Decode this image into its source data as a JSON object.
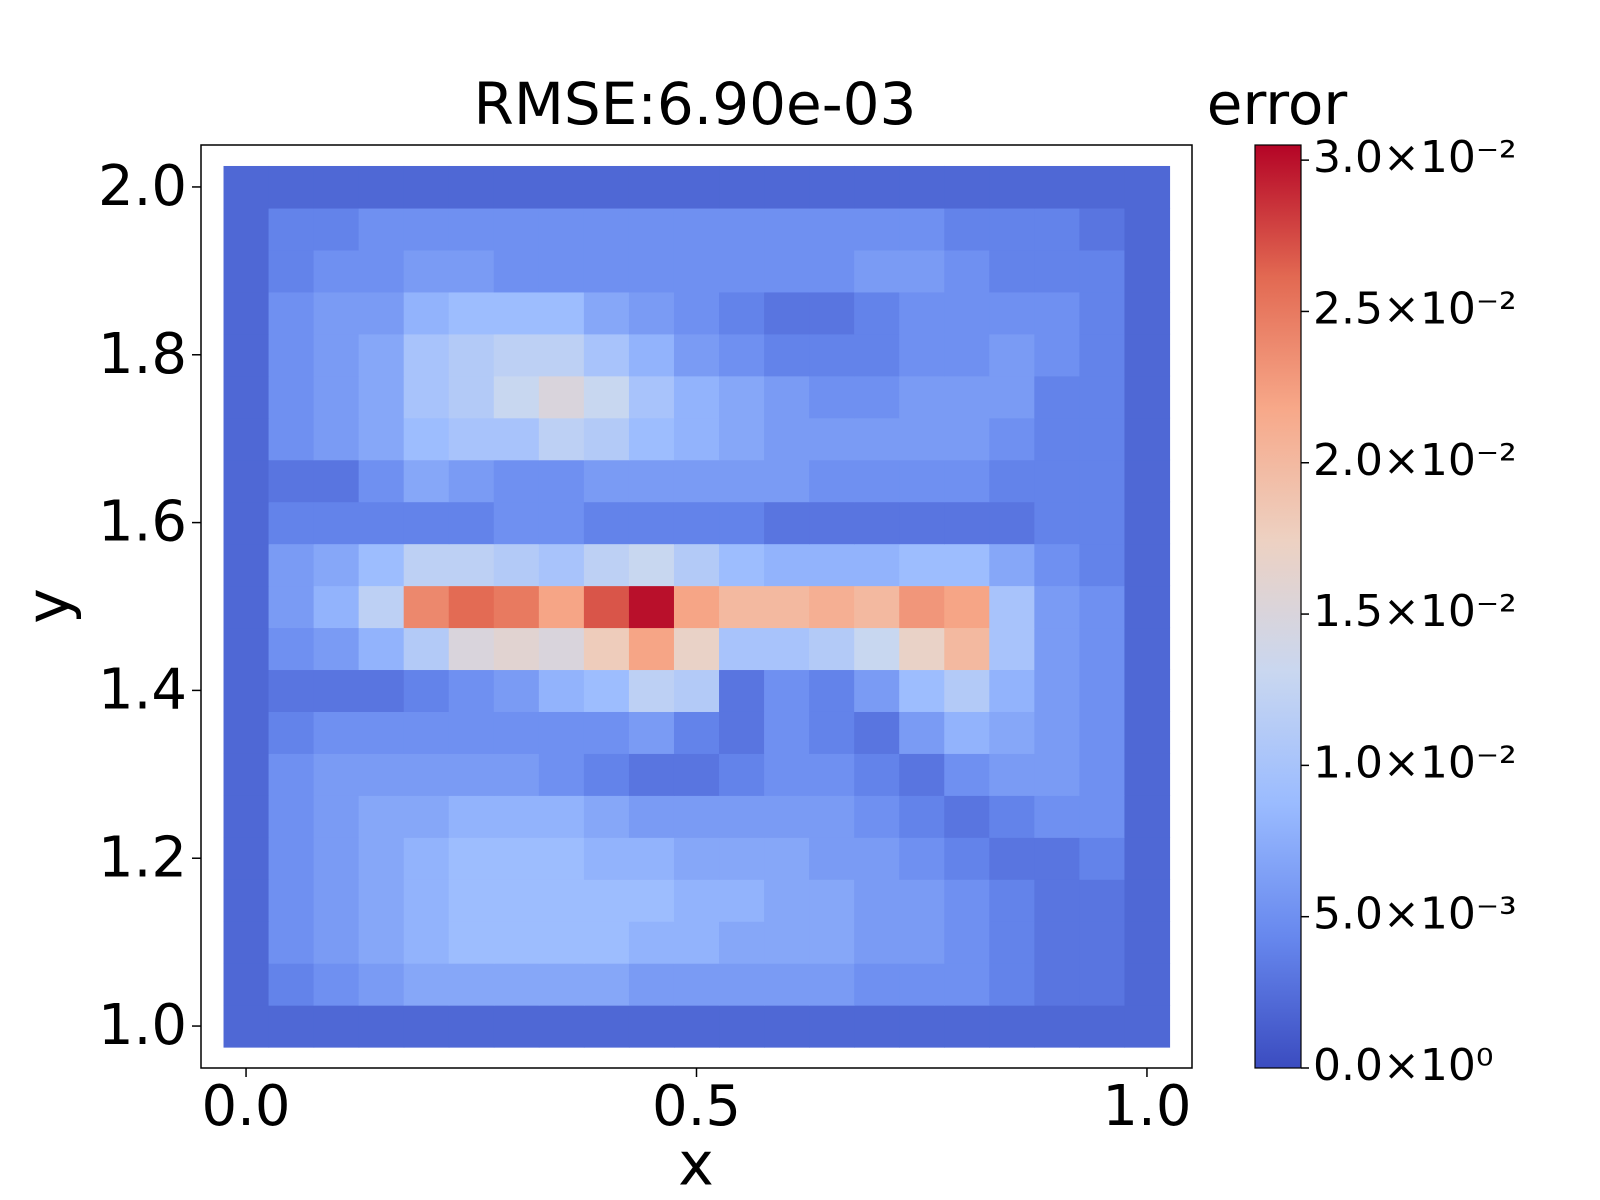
{
  "chart_data": {
    "type": "heatmap",
    "title": "RMSE:6.90e-03",
    "xlabel": "x",
    "ylabel": "y",
    "colorbar_label": "error",
    "x": [
      0,
      0.05,
      0.1,
      0.15,
      0.2,
      0.25,
      0.3,
      0.35,
      0.4,
      0.45,
      0.5,
      0.55,
      0.6,
      0.65,
      0.7,
      0.75,
      0.8,
      0.85,
      0.9,
      0.95,
      1
    ],
    "y": [
      1,
      1.05,
      1.1,
      1.15,
      1.2,
      1.25,
      1.3,
      1.35,
      1.4,
      1.45,
      1.5,
      1.55,
      1.6,
      1.65,
      1.7,
      1.75,
      1.8,
      1.85,
      1.9,
      1.95,
      2
    ],
    "z": [
      [
        0.002,
        0.002,
        0.002,
        0.002,
        0.002,
        0.002,
        0.002,
        0.002,
        0.002,
        0.002,
        0.002,
        0.002,
        0.002,
        0.002,
        0.002,
        0.002,
        0.002,
        0.002,
        0.002,
        0.002,
        0.002
      ],
      [
        0.002,
        0.004,
        0.005,
        0.006,
        0.007,
        0.007,
        0.007,
        0.007,
        0.007,
        0.006,
        0.006,
        0.006,
        0.006,
        0.006,
        0.005,
        0.005,
        0.005,
        0.004,
        0.003,
        0.003,
        0.002
      ],
      [
        0.002,
        0.005,
        0.006,
        0.007,
        0.008,
        0.009,
        0.009,
        0.009,
        0.009,
        0.008,
        0.008,
        0.007,
        0.007,
        0.007,
        0.006,
        0.006,
        0.005,
        0.004,
        0.003,
        0.003,
        0.002
      ],
      [
        0.002,
        0.005,
        0.006,
        0.007,
        0.008,
        0.009,
        0.009,
        0.009,
        0.009,
        0.009,
        0.008,
        0.008,
        0.007,
        0.007,
        0.006,
        0.006,
        0.005,
        0.004,
        0.003,
        0.003,
        0.002
      ],
      [
        0.002,
        0.005,
        0.006,
        0.007,
        0.008,
        0.009,
        0.009,
        0.009,
        0.008,
        0.008,
        0.007,
        0.007,
        0.007,
        0.006,
        0.006,
        0.005,
        0.004,
        0.003,
        0.003,
        0.004,
        0.002
      ],
      [
        0.002,
        0.005,
        0.006,
        0.007,
        0.007,
        0.008,
        0.008,
        0.008,
        0.007,
        0.006,
        0.006,
        0.006,
        0.006,
        0.006,
        0.005,
        0.004,
        0.003,
        0.004,
        0.005,
        0.005,
        0.002
      ],
      [
        0.002,
        0.005,
        0.006,
        0.006,
        0.006,
        0.006,
        0.006,
        0.005,
        0.004,
        0.003,
        0.003,
        0.004,
        0.005,
        0.005,
        0.004,
        0.003,
        0.005,
        0.006,
        0.006,
        0.005,
        0.002
      ],
      [
        0.002,
        0.004,
        0.005,
        0.005,
        0.005,
        0.005,
        0.005,
        0.005,
        0.005,
        0.006,
        0.004,
        0.003,
        0.005,
        0.004,
        0.003,
        0.006,
        0.008,
        0.007,
        0.006,
        0.005,
        0.002
      ],
      [
        0.002,
        0.003,
        0.003,
        0.003,
        0.004,
        0.005,
        0.006,
        0.008,
        0.009,
        0.012,
        0.011,
        0.003,
        0.005,
        0.004,
        0.006,
        0.009,
        0.011,
        0.008,
        0.006,
        0.005,
        0.002
      ],
      [
        0.002,
        0.005,
        0.006,
        0.008,
        0.011,
        0.015,
        0.016,
        0.015,
        0.018,
        0.022,
        0.017,
        0.01,
        0.01,
        0.011,
        0.013,
        0.017,
        0.02,
        0.01,
        0.006,
        0.005,
        0.002
      ],
      [
        0.002,
        0.006,
        0.008,
        0.012,
        0.024,
        0.026,
        0.025,
        0.022,
        0.027,
        0.03,
        0.022,
        0.02,
        0.02,
        0.021,
        0.02,
        0.023,
        0.022,
        0.01,
        0.006,
        0.005,
        0.002
      ],
      [
        0.002,
        0.006,
        0.007,
        0.009,
        0.012,
        0.012,
        0.011,
        0.01,
        0.012,
        0.013,
        0.011,
        0.009,
        0.008,
        0.008,
        0.008,
        0.009,
        0.009,
        0.007,
        0.005,
        0.004,
        0.002
      ],
      [
        0.002,
        0.004,
        0.004,
        0.004,
        0.004,
        0.004,
        0.005,
        0.005,
        0.004,
        0.004,
        0.004,
        0.004,
        0.003,
        0.003,
        0.003,
        0.003,
        0.003,
        0.003,
        0.004,
        0.004,
        0.002
      ],
      [
        0.002,
        0.003,
        0.003,
        0.005,
        0.007,
        0.006,
        0.005,
        0.005,
        0.006,
        0.006,
        0.006,
        0.006,
        0.006,
        0.005,
        0.005,
        0.005,
        0.005,
        0.004,
        0.004,
        0.004,
        0.002
      ],
      [
        0.002,
        0.005,
        0.006,
        0.007,
        0.009,
        0.01,
        0.01,
        0.012,
        0.011,
        0.009,
        0.008,
        0.007,
        0.006,
        0.006,
        0.006,
        0.006,
        0.006,
        0.005,
        0.004,
        0.004,
        0.002
      ],
      [
        0.002,
        0.005,
        0.006,
        0.007,
        0.01,
        0.011,
        0.013,
        0.015,
        0.013,
        0.01,
        0.008,
        0.007,
        0.006,
        0.005,
        0.005,
        0.006,
        0.006,
        0.006,
        0.004,
        0.004,
        0.002
      ],
      [
        0.002,
        0.005,
        0.006,
        0.007,
        0.01,
        0.011,
        0.012,
        0.012,
        0.01,
        0.008,
        0.006,
        0.005,
        0.004,
        0.004,
        0.004,
        0.005,
        0.005,
        0.006,
        0.005,
        0.004,
        0.002
      ],
      [
        0.002,
        0.005,
        0.006,
        0.006,
        0.008,
        0.009,
        0.009,
        0.009,
        0.007,
        0.006,
        0.005,
        0.004,
        0.003,
        0.003,
        0.004,
        0.005,
        0.005,
        0.005,
        0.005,
        0.004,
        0.002
      ],
      [
        0.002,
        0.004,
        0.005,
        0.005,
        0.006,
        0.006,
        0.005,
        0.005,
        0.005,
        0.005,
        0.005,
        0.005,
        0.005,
        0.005,
        0.006,
        0.006,
        0.005,
        0.004,
        0.004,
        0.004,
        0.002
      ],
      [
        0.002,
        0.004,
        0.004,
        0.005,
        0.005,
        0.005,
        0.005,
        0.005,
        0.005,
        0.005,
        0.005,
        0.005,
        0.005,
        0.005,
        0.005,
        0.005,
        0.004,
        0.004,
        0.004,
        0.003,
        0.002
      ],
      [
        0.002,
        0.002,
        0.002,
        0.002,
        0.002,
        0.002,
        0.002,
        0.002,
        0.002,
        0.002,
        0.002,
        0.002,
        0.002,
        0.002,
        0.002,
        0.002,
        0.002,
        0.002,
        0.002,
        0.002,
        0.002
      ]
    ],
    "xlim": [
      -0.05,
      1.05
    ],
    "ylim": [
      0.95,
      2.05
    ],
    "xticks": [
      {
        "value": 0,
        "label": "0.0"
      },
      0.5,
      {
        "value": 1,
        "label": "1.0"
      }
    ],
    "yticks": [
      {
        "value": 1,
        "label": "1.0"
      },
      1.2,
      1.4,
      1.6,
      1.8,
      {
        "value": 2,
        "label": "2.0"
      }
    ],
    "clim": [
      0,
      0.0305
    ],
    "cticks": [
      {
        "value": 0,
        "label": "0.0×10⁰"
      },
      {
        "value": 0.005,
        "label": "5.0×10⁻³"
      },
      {
        "value": 0.01,
        "label": "1.0×10⁻²"
      },
      {
        "value": 0.015,
        "label": "1.5×10⁻²"
      },
      {
        "value": 0.02,
        "label": "2.0×10⁻²"
      },
      {
        "value": 0.025,
        "label": "2.5×10⁻²"
      },
      {
        "value": 0.03,
        "label": "3.0×10⁻²"
      }
    ],
    "colormap": [
      "#3b4cc0",
      "#6788ee",
      "#9abbff",
      "#c9d7f0",
      "#edd1c2",
      "#f7a889",
      "#e26952",
      "#b40426"
    ]
  }
}
